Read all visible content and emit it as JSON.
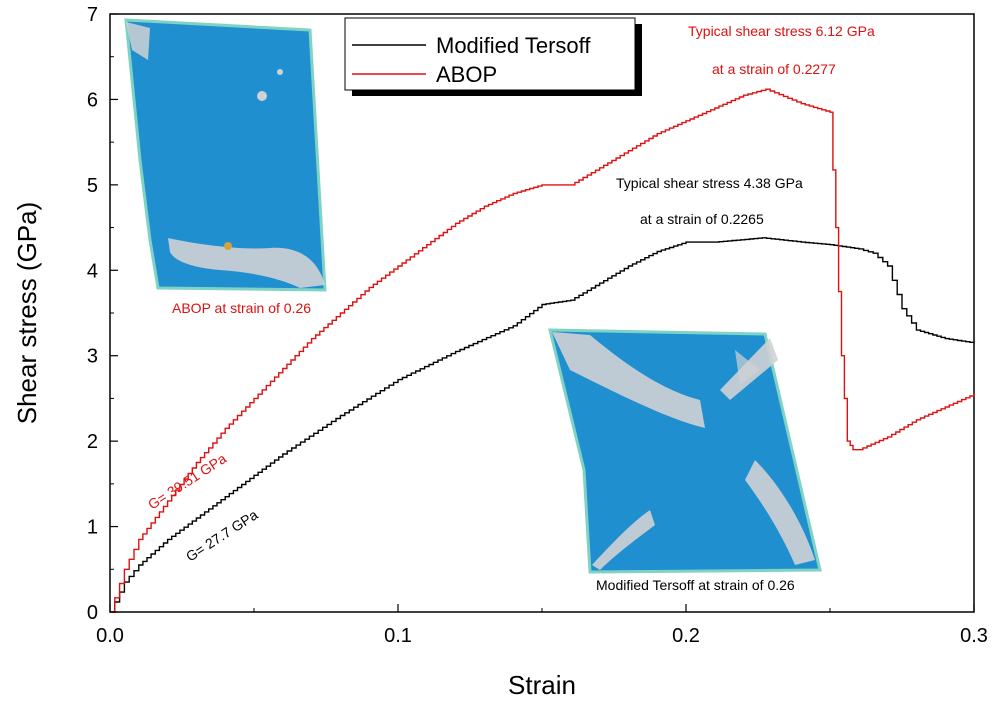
{
  "chart_data": {
    "type": "line",
    "xlabel": "Strain",
    "ylabel": "Shear stress (GPa)",
    "xlim": [
      0.0,
      0.3
    ],
    "ylim": [
      0,
      7
    ],
    "x_ticks": [
      "0.0",
      "0.1",
      "0.2",
      "0.3"
    ],
    "y_ticks": [
      "0",
      "1",
      "2",
      "3",
      "4",
      "5",
      "6",
      "7"
    ],
    "grid": false,
    "legend_position": "top-center",
    "series": [
      {
        "name": "Modified Tersoff",
        "color": "#000000",
        "x": [
          0.0,
          0.005,
          0.01,
          0.02,
          0.03,
          0.04,
          0.05,
          0.06,
          0.08,
          0.1,
          0.12,
          0.14,
          0.15,
          0.16,
          0.17,
          0.18,
          0.19,
          0.2,
          0.21,
          0.2265,
          0.24,
          0.25,
          0.26,
          0.265,
          0.27,
          0.275,
          0.28,
          0.29,
          0.3
        ],
        "y": [
          0.0,
          0.35,
          0.55,
          0.85,
          1.1,
          1.35,
          1.6,
          1.85,
          2.3,
          2.72,
          3.05,
          3.35,
          3.6,
          3.65,
          3.85,
          4.05,
          4.22,
          4.33,
          4.33,
          4.38,
          4.33,
          4.3,
          4.25,
          4.2,
          4.05,
          3.55,
          3.3,
          3.2,
          3.15
        ]
      },
      {
        "name": "ABOP",
        "color": "#dd1111",
        "x": [
          0.0,
          0.005,
          0.01,
          0.02,
          0.03,
          0.04,
          0.05,
          0.06,
          0.07,
          0.08,
          0.09,
          0.1,
          0.11,
          0.12,
          0.13,
          0.14,
          0.15,
          0.16,
          0.17,
          0.18,
          0.19,
          0.2,
          0.21,
          0.22,
          0.2277,
          0.24,
          0.25,
          0.252,
          0.254,
          0.256,
          0.258,
          0.26,
          0.27,
          0.28,
          0.29,
          0.3
        ],
        "y": [
          0.0,
          0.5,
          0.85,
          1.3,
          1.75,
          2.15,
          2.5,
          2.85,
          3.2,
          3.5,
          3.8,
          4.05,
          4.3,
          4.55,
          4.75,
          4.9,
          5.0,
          5.0,
          5.2,
          5.4,
          5.6,
          5.75,
          5.9,
          6.05,
          6.12,
          5.95,
          5.85,
          4.5,
          3.0,
          2.0,
          1.9,
          1.9,
          2.05,
          2.25,
          2.4,
          2.55
        ]
      }
    ],
    "annotations": [
      {
        "id": "abop-peak-line1",
        "text": "Typical shear stress 6.12 GPa",
        "color": "#dd1111"
      },
      {
        "id": "abop-peak-line2",
        "text": "at a strain of 0.2277",
        "color": "#dd1111"
      },
      {
        "id": "tersoff-peak-line1",
        "text": "Typical shear stress 4.38 GPa",
        "color": "#000000"
      },
      {
        "id": "tersoff-peak-line2",
        "text": "at a strain of 0.2265",
        "color": "#000000"
      },
      {
        "id": "abop-modulus",
        "text": "G= 39.51 GPa",
        "color": "#dd1111"
      },
      {
        "id": "tersoff-modulus",
        "text": "G= 27.7 GPa",
        "color": "#000000"
      },
      {
        "id": "abop-inset-caption",
        "text": "ABOP at strain of 0.26",
        "color": "#dd1111"
      },
      {
        "id": "tersoff-inset-caption",
        "text": "Modified Tersoff  at strain of 0.26",
        "color": "#000000"
      }
    ],
    "insets": [
      {
        "id": "abop-snapshot",
        "fill": "#1f8fd0",
        "edge": "#7fd3c4",
        "defect": "#cfd2d4"
      },
      {
        "id": "tersoff-snapshot",
        "fill": "#1f8fd0",
        "edge": "#7fd3c4",
        "defect": "#cfd2d4"
      }
    ]
  }
}
